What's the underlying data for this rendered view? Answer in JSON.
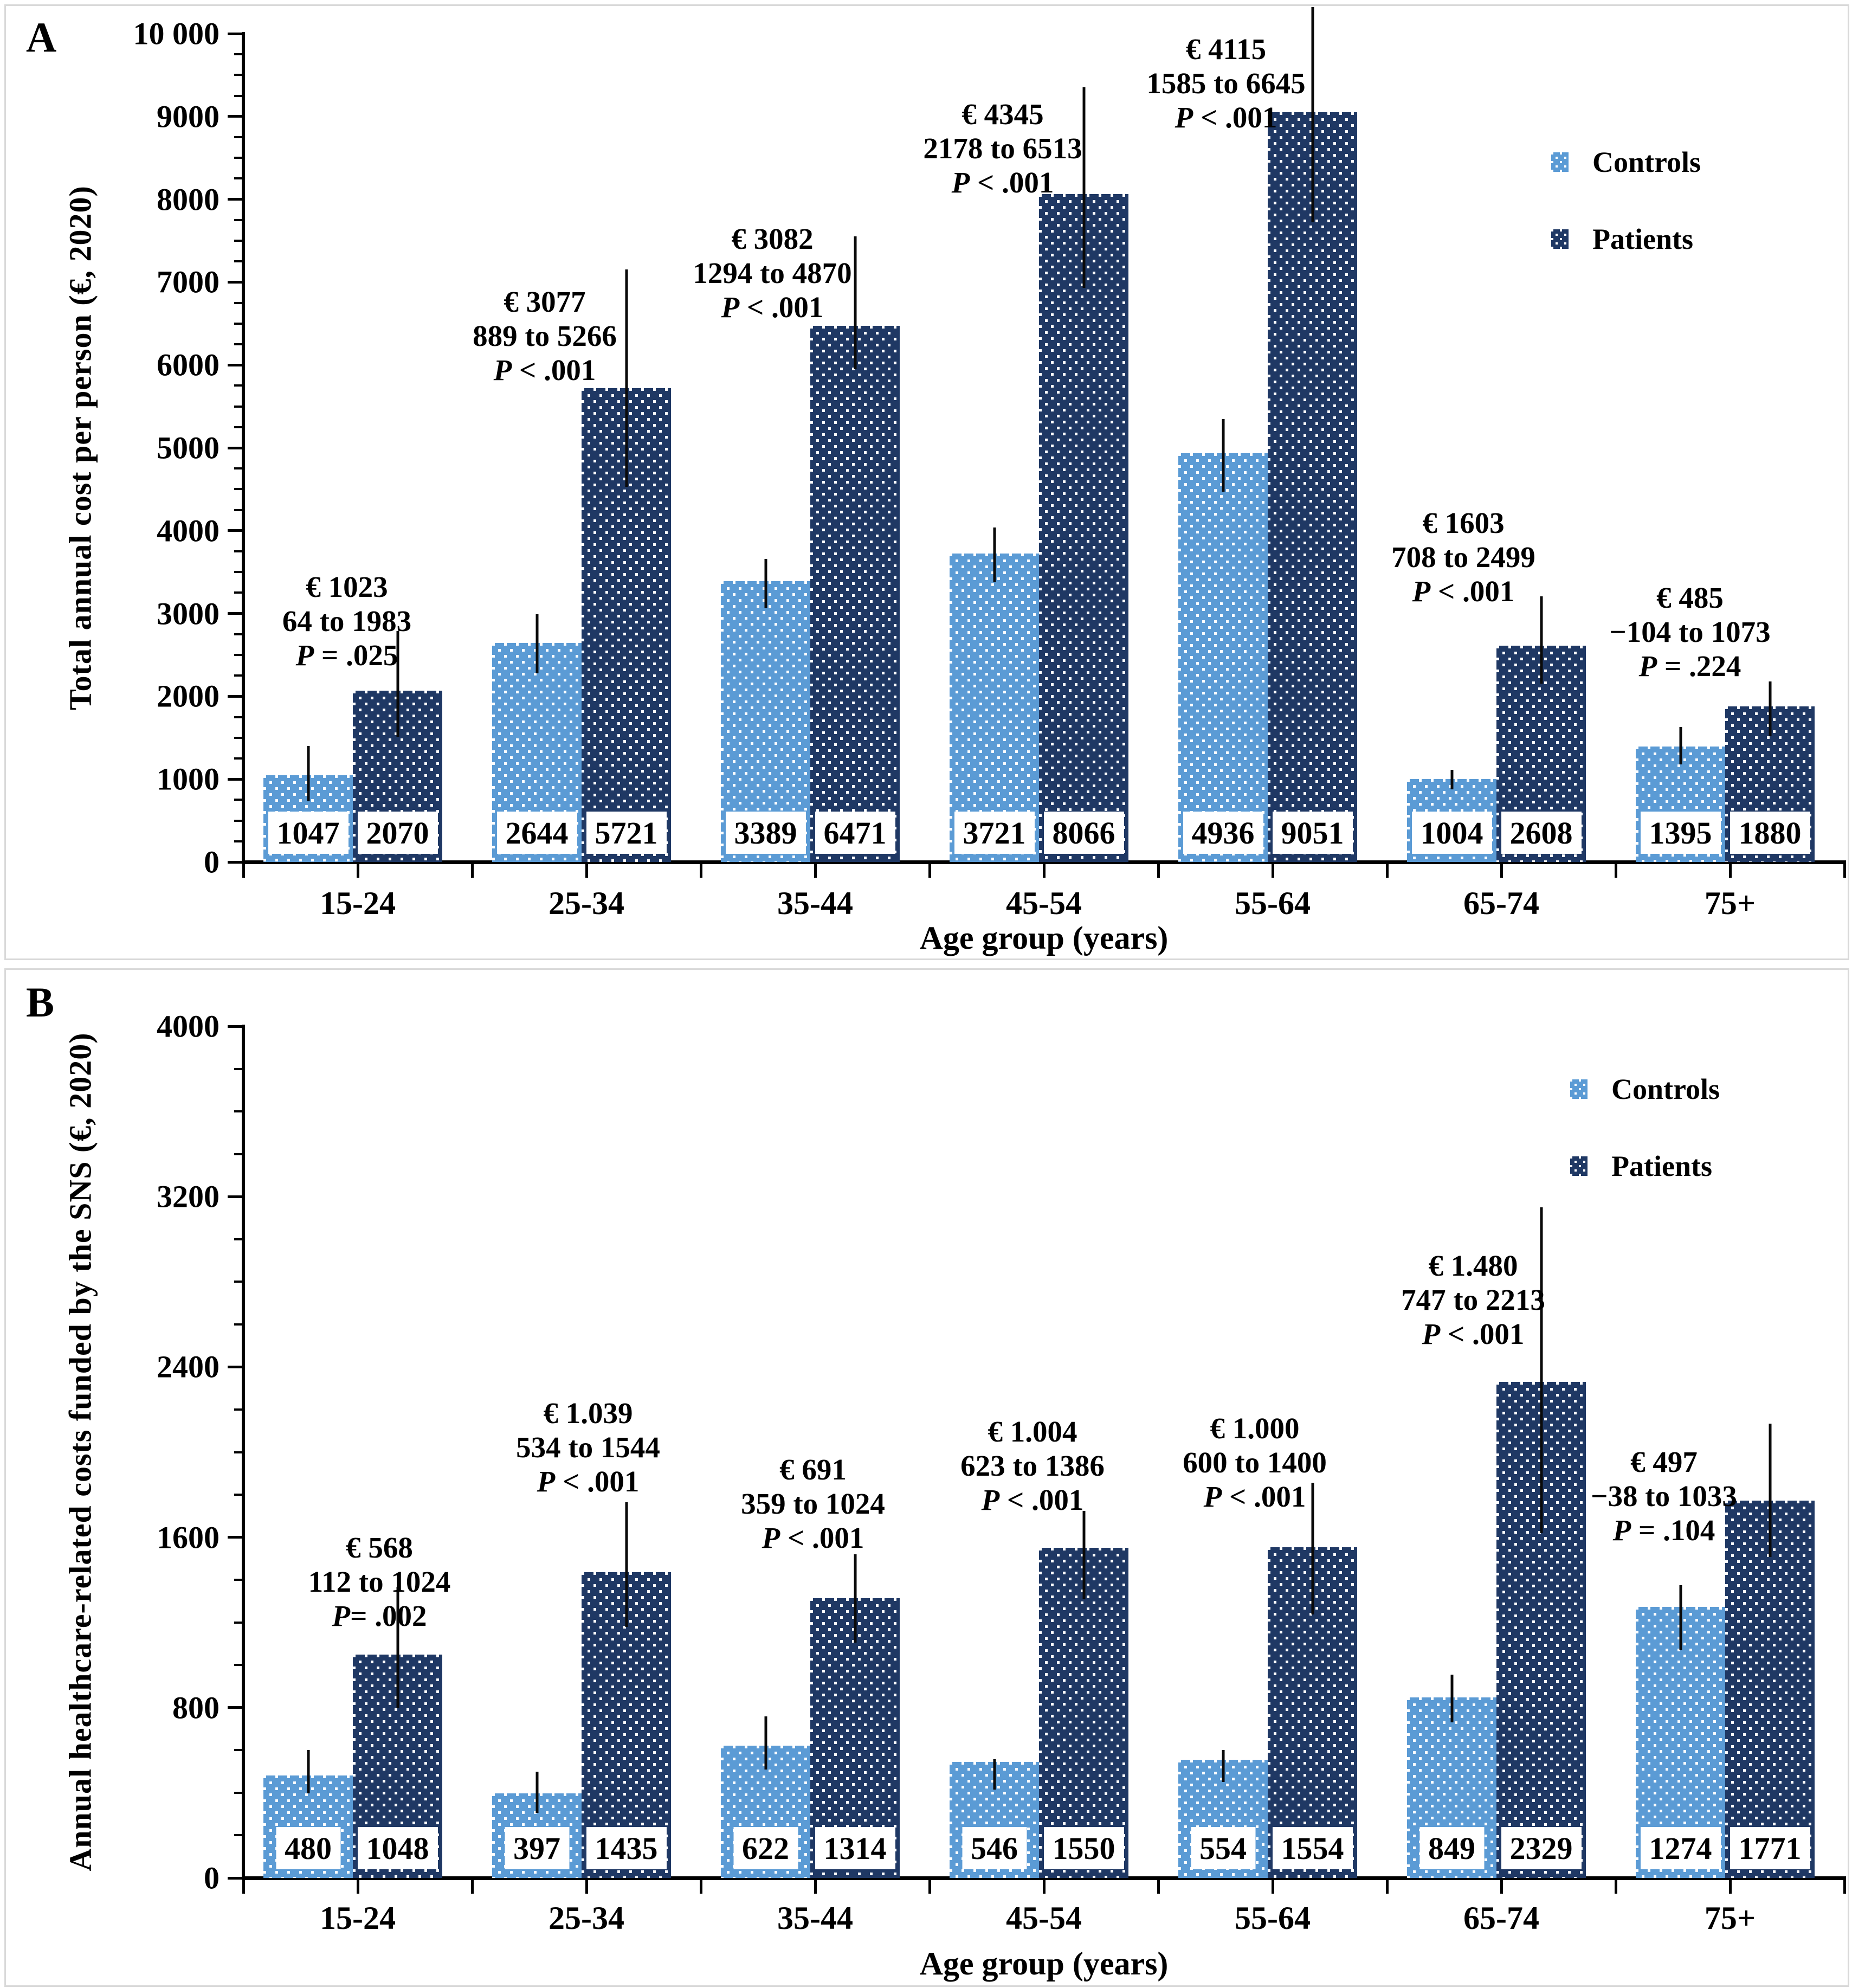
{
  "colors": {
    "controls": "#5B9BD5",
    "patients": "#1F3864",
    "error_bar": "#0a0a0a",
    "axis": "#000000",
    "panel_border": "#d9d9d9"
  },
  "chart_data": [
    {
      "type": "bar",
      "panel": "A",
      "ylabel": "Total annual cost per person (€, 2020)",
      "xlabel": "Age group (years)",
      "categories": [
        "15-24",
        "25-34",
        "35-44",
        "45-54",
        "55-64",
        "65-74",
        "75+"
      ],
      "ylim": [
        0,
        10000
      ],
      "ytick_major": 1000,
      "ytick_minor": 250,
      "ytick_labels": [
        "0",
        "1000",
        "2000",
        "3000",
        "4000",
        "5000",
        "6000",
        "7000",
        "8000",
        "9000",
        "10 000"
      ],
      "grid": false,
      "legend_position": "top-right",
      "legend_entries": [
        "Controls",
        "Patients"
      ],
      "series": [
        {
          "name": "Controls",
          "values": [
            1047,
            2644,
            3389,
            3721,
            4936,
            1004,
            1395
          ],
          "err_low": [
            730,
            2280,
            3060,
            3380,
            4470,
            880,
            1180
          ],
          "err_high": [
            1400,
            2990,
            3660,
            4040,
            5350,
            1110,
            1630
          ],
          "bar_labels": [
            "1047",
            "2644",
            "3389",
            "3721",
            "4936",
            "1004",
            "1395"
          ]
        },
        {
          "name": "Patients",
          "values": [
            2070,
            5721,
            6471,
            8066,
            9051,
            2608,
            1880
          ],
          "err_low": [
            1510,
            4530,
            5950,
            6930,
            7720,
            2150,
            1520
          ],
          "err_high": [
            2790,
            7150,
            7550,
            9350,
            10320,
            3210,
            2180
          ],
          "bar_labels": [
            "2070",
            "5721",
            "6471",
            "8066",
            "9051",
            "2608",
            "1880"
          ]
        }
      ],
      "annotations": [
        {
          "amount": "€ 1023",
          "ci": "64 to 1983",
          "p": "P = .025"
        },
        {
          "amount": "€ 3077",
          "ci": "889 to 5266",
          "p": "P < .001"
        },
        {
          "amount": "€ 3082",
          "ci": "1294 to 4870",
          "p": "P < .001"
        },
        {
          "amount": "€ 4345",
          "ci": "2178 to 6513",
          "p": "P < .001"
        },
        {
          "amount": "€ 4115",
          "ci": "1585 to 6645",
          "p": "P < .001"
        },
        {
          "amount": "€ 1603",
          "ci": "708 to 2499",
          "p": "P < .001"
        },
        {
          "amount": "€ 485",
          "ci": "−104 to 1073",
          "p": "P = .224"
        }
      ]
    },
    {
      "type": "bar",
      "panel": "B",
      "ylabel": "Annual healthcare-related costs funded by the SNS (€, 2020)",
      "xlabel": "Age group (years)",
      "categories": [
        "15-24",
        "25-34",
        "35-44",
        "45-54",
        "55-64",
        "65-74",
        "75+"
      ],
      "ylim": [
        0,
        4000
      ],
      "ytick_major": 800,
      "ytick_minor": 200,
      "ytick_labels": [
        "0",
        "800",
        "1600",
        "2400",
        "3200",
        "4000"
      ],
      "grid": false,
      "legend_position": "top-right",
      "legend_entries": [
        "Controls",
        "Patients"
      ],
      "series": [
        {
          "name": "Controls",
          "values": [
            480,
            397,
            622,
            546,
            554,
            849,
            1274
          ],
          "err_low": [
            397,
            305,
            509,
            415,
            451,
            731,
            1069
          ],
          "err_high": [
            601,
            499,
            758,
            558,
            601,
            955,
            1375
          ],
          "bar_labels": [
            "480",
            "397",
            "622",
            "546",
            "554",
            "849",
            "1274"
          ]
        },
        {
          "name": "Patients",
          "values": [
            1048,
            1435,
            1314,
            1550,
            1554,
            2329,
            1771
          ],
          "err_low": [
            797,
            1180,
            1105,
            1309,
            1237,
            1620,
            1507
          ],
          "err_high": [
            1368,
            1765,
            1520,
            1724,
            1856,
            3150,
            2133
          ],
          "bar_labels": [
            "1048",
            "1435",
            "1314",
            "1550",
            "1554",
            "2329",
            "1771"
          ]
        }
      ],
      "annotations": [
        {
          "amount": "€ 568",
          "ci": "112 to 1024",
          "p": "P= .002"
        },
        {
          "amount": "€ 1.039",
          "ci": "534 to 1544",
          "p": "P < .001"
        },
        {
          "amount": "€ 691",
          "ci": "359 to 1024",
          "p": "P < .001"
        },
        {
          "amount": "€ 1.004",
          "ci": "623 to 1386",
          "p": "P < .001"
        },
        {
          "amount": "€ 1.000",
          "ci": "600 to 1400",
          "p": "P < .001"
        },
        {
          "amount": "€ 1.480",
          "ci": "747 to 2213",
          "p": "P < .001"
        },
        {
          "amount": "€ 497",
          "ci": "−38 to 1033",
          "p": "P = .104"
        }
      ]
    }
  ]
}
